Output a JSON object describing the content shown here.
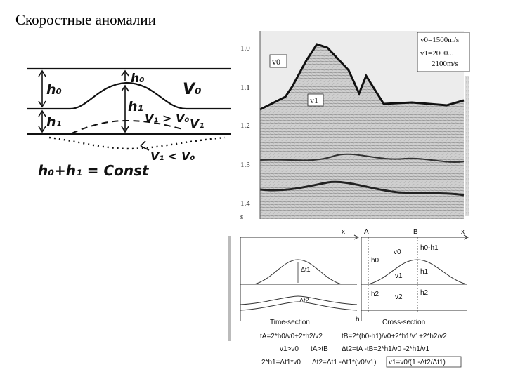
{
  "page": {
    "title": "Скоростные аномалии"
  },
  "sketch": {
    "label_h0_left": "h₀",
    "label_h0_top": "h₀",
    "label_h1_mid": "h₁",
    "label_h1_left": "h₁",
    "label_v0": "V₀",
    "label_v1": "V₁",
    "label_v1_gt": "V₁ > V₀",
    "label_v1_lt": "V₁ < V₀",
    "formula": "h₀+h₁ = Const"
  },
  "seismic": {
    "ticks": [
      "1.0",
      "1.1",
      "1.2",
      "1.3",
      "1.4"
    ],
    "unit": "s",
    "label_v0": "v0",
    "label_v1": "v1",
    "legend_v0": "v0=1500m/s",
    "legend_v1_a": "v1=2000...",
    "legend_v1_b": "2100m/s"
  },
  "sections": {
    "x_left": "x",
    "x_right": "x",
    "label_A": "A",
    "label_B": "B",
    "dt1": "Δt1",
    "dt2": "Δt2",
    "time_section": "Time-section",
    "h_axis": "h",
    "h0": "h0",
    "v0": "v0",
    "h0_h1": "h0-h1",
    "v1": "v1",
    "h1": "h1",
    "h2_left": "h2",
    "v2": "v2",
    "h2_right": "h2",
    "cross_section": "Cross-section"
  },
  "formulas": {
    "line1_a": "tA=2*h0/v0+2*h2/v2",
    "line1_b": "tB=2*(h0-h1)/v0+2*h1/v1+2*h2/v2",
    "line2_a": "v1>v0",
    "line2_b": "tA>tB",
    "line2_c": "Δt2=tA -tB=2*h1/v0 -2*h1/v1",
    "line3_a": "2*h1=Δt1*v0",
    "line3_b": "Δt2=Δt1 -Δt1*(v0/v1)",
    "line3_c": "v1=v0/(1 -Δt2/Δt1)"
  }
}
